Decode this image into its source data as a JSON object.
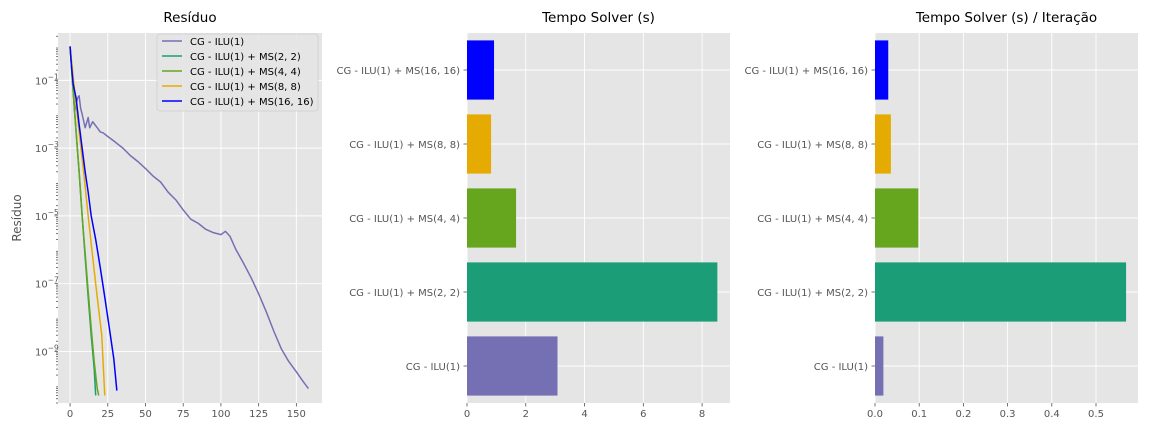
{
  "chart_data": [
    {
      "type": "line",
      "title": "Resíduo",
      "xlabel": "",
      "ylabel": "Resíduo",
      "yscale": "log",
      "xlim": [
        -8,
        167
      ],
      "ylim": [
        3e-11,
        2.5
      ],
      "xticks": [
        0,
        25,
        50,
        75,
        100,
        125,
        150
      ],
      "yticks": [
        {
          "value": 0.1,
          "base": "10",
          "exp": "−1"
        },
        {
          "value": 0.001,
          "base": "10",
          "exp": "−3"
        },
        {
          "value": 1e-05,
          "base": "10",
          "exp": "−5"
        },
        {
          "value": 1e-07,
          "base": "10",
          "exp": "−7"
        },
        {
          "value": 1e-09,
          "base": "10",
          "exp": "−9"
        }
      ],
      "grid": true,
      "legend_position": "top-right",
      "series": [
        {
          "name": "CG - ILU(1)",
          "color": "#7570b3",
          "x": [
            0,
            1,
            2,
            3,
            4,
            5,
            6,
            7,
            8,
            10,
            12,
            13,
            15,
            18,
            20,
            22,
            25,
            30,
            35,
            40,
            45,
            50,
            55,
            60,
            65,
            70,
            75,
            80,
            85,
            90,
            95,
            100,
            103,
            106,
            110,
            115,
            120,
            125,
            130,
            135,
            140,
            145,
            150,
            155,
            158
          ],
          "y": [
            1.0,
            0.25,
            0.08,
            0.012,
            0.02,
            0.03,
            0.035,
            0.015,
            0.01,
            0.004,
            0.008,
            0.004,
            0.006,
            0.004,
            0.003,
            0.0028,
            0.0022,
            0.0015,
            0.001,
            0.0006,
            0.0004,
            0.00025,
            0.00015,
            0.0001,
            5e-05,
            3e-05,
            1.5e-05,
            8e-06,
            6e-06,
            4e-06,
            3.2e-06,
            2.8e-06,
            3.5e-06,
            2.5e-06,
            1e-06,
            4e-07,
            1.5e-07,
            5e-08,
            1.5e-08,
            4e-09,
            1.2e-09,
            5e-10,
            2.5e-10,
            1.2e-10,
            8e-11
          ]
        },
        {
          "name": "CG - ILU(1) + MS(2, 2)",
          "color": "#1b9e77",
          "x": [
            0,
            2,
            4,
            6,
            8,
            10,
            12,
            14,
            16,
            17
          ],
          "y": [
            1.0,
            0.05,
            0.003,
            0.0002,
            1e-05,
            6e-07,
            4e-08,
            3e-09,
            3e-10,
            5e-11
          ]
        },
        {
          "name": "CG - ILU(1) + MS(4, 4)",
          "color": "#66a61e",
          "x": [
            0,
            2,
            4,
            6,
            8,
            10,
            12,
            14,
            16,
            18,
            19
          ],
          "y": [
            1.0,
            0.05,
            0.003,
            0.0002,
            1e-05,
            8e-07,
            6e-08,
            5e-09,
            5e-10,
            8e-11,
            5e-11
          ]
        },
        {
          "name": "CG - ILU(1) + MS(8, 8)",
          "color": "#e6ab02",
          "x": [
            0,
            3,
            6,
            9,
            12,
            15,
            18,
            21,
            23
          ],
          "y": [
            1.0,
            0.05,
            0.003,
            0.0002,
            1e-05,
            6e-07,
            4e-08,
            3e-09,
            5e-11
          ]
        },
        {
          "name": "CG - ILU(1) + MS(16, 16)",
          "color": "#0000ff",
          "x": [
            0,
            1,
            2,
            4,
            6,
            8,
            10,
            12,
            14,
            17,
            20,
            23,
            26,
            29,
            31
          ],
          "y": [
            1.0,
            0.25,
            0.08,
            0.03,
            0.005,
            0.001,
            0.0002,
            5e-05,
            1e-05,
            2e-06,
            3e-07,
            4e-08,
            5e-09,
            6e-10,
            7e-11
          ]
        }
      ]
    },
    {
      "type": "bar",
      "orientation": "horizontal",
      "title": "Tempo Solver (s)",
      "xlabel": "",
      "ylabel": "",
      "xlim": [
        0,
        8.95
      ],
      "xticks": [
        "0",
        "2",
        "4",
        "6",
        "8"
      ],
      "grid": true,
      "categories": [
        "CG - ILU(1)",
        "CG - ILU(1) + MS(2, 2)",
        "CG - ILU(1) + MS(4, 4)",
        "CG - ILU(1) + MS(8, 8)",
        "CG - ILU(1) + MS(16, 16)"
      ],
      "values": [
        3.08,
        8.52,
        1.67,
        0.82,
        0.92
      ],
      "colors": [
        "#7570b3",
        "#1b9e77",
        "#66a61e",
        "#e6ab02",
        "#0000ff"
      ]
    },
    {
      "type": "bar",
      "orientation": "horizontal",
      "title": "Tempo Solver (s) / Iteração",
      "xlabel": "",
      "ylabel": "",
      "xlim": [
        0,
        0.595
      ],
      "xticks": [
        "0.0",
        "0.1",
        "0.2",
        "0.3",
        "0.4",
        "0.5"
      ],
      "grid": true,
      "categories": [
        "CG - ILU(1)",
        "CG - ILU(1) + MS(2, 2)",
        "CG - ILU(1) + MS(4, 4)",
        "CG - ILU(1) + MS(8, 8)",
        "CG - ILU(1) + MS(16, 16)"
      ],
      "values": [
        0.019,
        0.568,
        0.098,
        0.036,
        0.03
      ],
      "colors": [
        "#7570b3",
        "#1b9e77",
        "#66a61e",
        "#e6ab02",
        "#0000ff"
      ]
    }
  ]
}
